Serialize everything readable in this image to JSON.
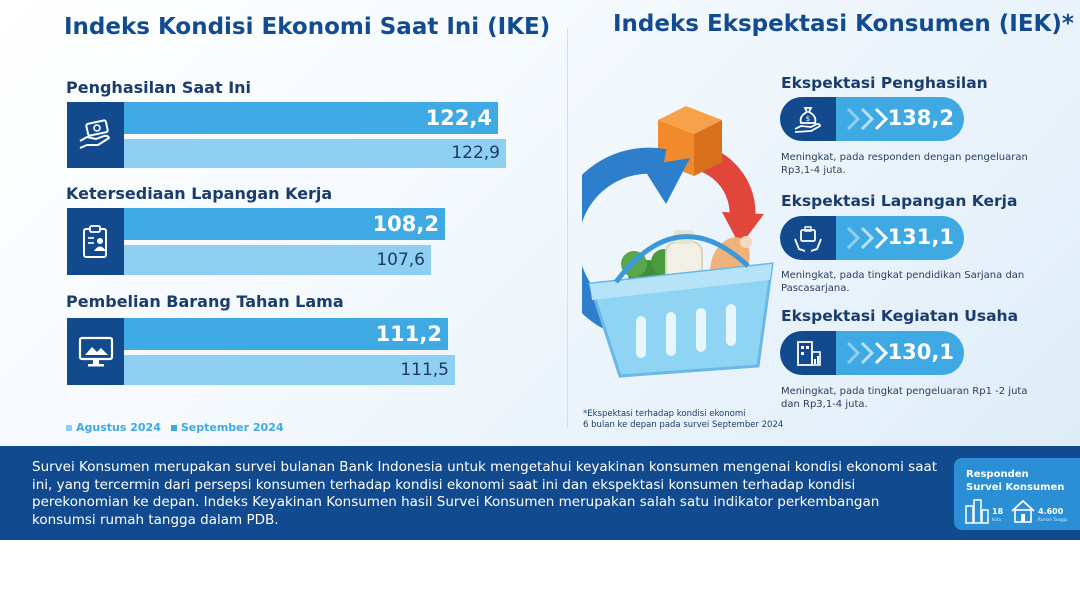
{
  "ike": {
    "title": "Indeks Kondisi Ekonomi Saat Ini (IKE)",
    "items": [
      {
        "label": "Penghasilan Saat Ini",
        "icon": "money-hand-icon",
        "august": "122,4",
        "september": "122,9"
      },
      {
        "label": "Ketersediaan Lapangan Kerja",
        "icon": "clipboard-person-icon",
        "august": "108,2",
        "september": "107,6"
      },
      {
        "label": "Pembelian Barang Tahan Lama",
        "icon": "monitor-icon",
        "august": "111,2",
        "september": "111,5"
      }
    ],
    "legend": [
      "Agustus 2024",
      "September 2024"
    ]
  },
  "iek": {
    "title": "Indeks Ekspektasi Konsumen (IEK)*",
    "items": [
      {
        "label": "Ekspektasi Penghasilan",
        "icon": "money-bag-hand-icon",
        "value": "138,2",
        "note": "Meningkat, pada responden dengan pengeluaran Rp3,1-4 juta."
      },
      {
        "label": "Ekspektasi Lapangan Kerja",
        "icon": "briefcase-hands-icon",
        "value": "131,1",
        "note": "Meningkat, pada tingkat pendidikan Sarjana dan Pascasarjana."
      },
      {
        "label": "Ekspektasi Kegiatan Usaha",
        "icon": "building-chart-icon",
        "value": "130,1",
        "note": "Meningkat, pada tingkat pengeluaran Rp1 -2  juta dan Rp3,1-4 juta."
      }
    ],
    "footnote_line1": "*Ekspektasi terhadap kondisi ekonomi",
    "footnote_line2": "6 bulan ke depan pada survei September 2024"
  },
  "footer": {
    "text": "Survei Konsumen merupakan survei bulanan Bank Indonesia untuk mengetahui keyakinan konsumen mengenai kondisi ekonomi saat ini, yang tercermin dari persepsi konsumen terhadap kondisi ekonomi saat ini dan ekspektasi konsumen terhadap kondisi perekonomian ke depan. Indeks Keyakinan Konsumen hasil Survei Konsumen merupakan salah satu indikator perkembangan konsumsi rumah tangga dalam PDB.",
    "respondents": {
      "title_line1": "Responden",
      "title_line2": "Survei Konsumen",
      "cities": "18",
      "cities_unit": "Kota",
      "households": "4.600",
      "households_unit": "Rumah Tangga"
    }
  },
  "colors": {
    "dark_blue": "#134a8e",
    "august_bar": "#3fa9e4",
    "september_bar": "#8fd0f2",
    "title": "#124b8f"
  },
  "chart_data": {
    "type": "bar",
    "title": "Indeks Kondisi Ekonomi Saat Ini (IKE)",
    "categories": [
      "Penghasilan Saat Ini",
      "Ketersediaan Lapangan Kerja",
      "Pembelian Barang Tahan Lama"
    ],
    "series": [
      {
        "name": "Agustus 2024",
        "values": [
          122.4,
          108.2,
          111.2
        ]
      },
      {
        "name": "September 2024",
        "values": [
          122.9,
          107.6,
          111.5
        ]
      }
    ],
    "orientation": "horizontal",
    "legend": "bottom-left"
  }
}
